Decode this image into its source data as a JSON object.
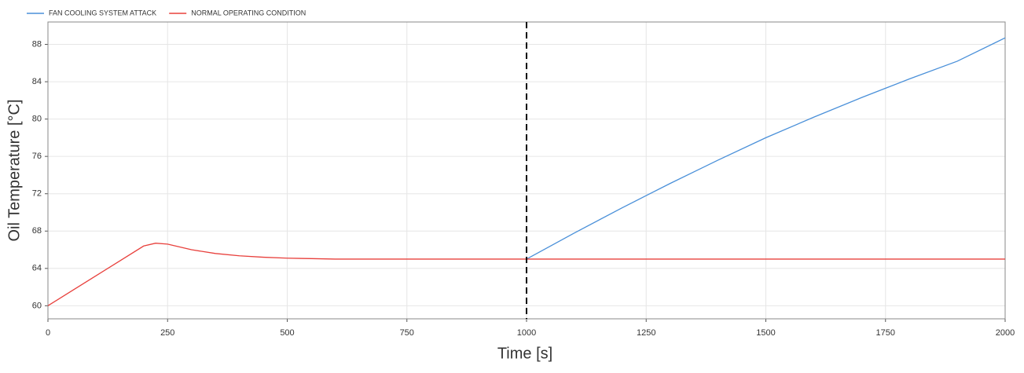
{
  "chart_data": {
    "type": "line",
    "x_label": "Time [s]",
    "y_label": "Oil Temperature [°C]",
    "x": [
      0,
      50,
      100,
      150,
      200,
      225,
      250,
      300,
      350,
      400,
      450,
      500,
      550,
      600,
      750,
      1000,
      1100,
      1200,
      1250,
      1300,
      1400,
      1500,
      1600,
      1700,
      1750,
      1800,
      1900,
      2000
    ],
    "series": [
      {
        "name": "FAN COOLING SYSTEM ATTACK",
        "color": "#4a90d9",
        "values": [
          null,
          null,
          null,
          null,
          null,
          null,
          null,
          null,
          null,
          null,
          null,
          null,
          null,
          null,
          null,
          65,
          67.8,
          70.5,
          71.8,
          73.1,
          75.6,
          78.0,
          80.2,
          82.3,
          83.3,
          84.3,
          86.2,
          88.7
        ]
      },
      {
        "name": "NORMAL OPERATING CONDITION",
        "color": "#e8403c",
        "values": [
          60,
          61.6,
          63.2,
          64.8,
          66.4,
          66.7,
          66.6,
          66.0,
          65.6,
          65.35,
          65.2,
          65.1,
          65.05,
          65,
          65,
          65,
          65,
          65,
          65,
          65,
          65,
          65,
          65,
          65,
          65,
          65,
          65,
          65
        ]
      }
    ],
    "vline": 1000,
    "xlim": [
      0,
      2000
    ],
    "xticks": [
      0,
      250,
      500,
      750,
      1000,
      1250,
      1500,
      1750,
      2000
    ],
    "ylim": [
      58.6,
      90.4
    ],
    "yticks": [
      60,
      64,
      68,
      72,
      76,
      80,
      84,
      88
    ],
    "grid": true,
    "legend": "top-left"
  }
}
